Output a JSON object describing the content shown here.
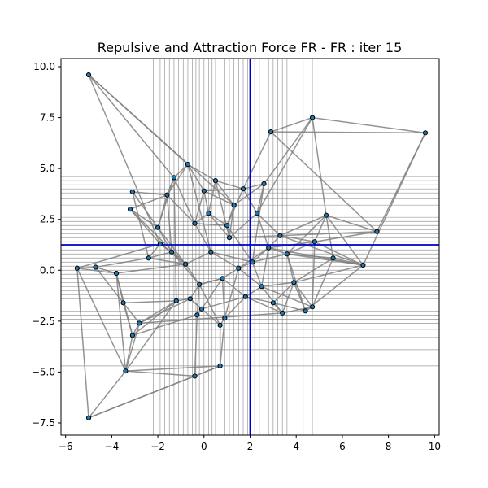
{
  "chart_data": {
    "type": "scatter",
    "title": "Repulsive and Attraction Force FR - FR : iter 15",
    "xlabel": "",
    "ylabel": "",
    "xlim": [
      -6.2,
      10.2
    ],
    "ylim": [
      -8.1,
      10.4
    ],
    "xticks": [
      -6,
      -4,
      -2,
      0,
      2,
      4,
      6,
      8,
      10
    ],
    "yticks": [
      -7.5,
      -5.0,
      -2.5,
      0.0,
      2.5,
      5.0,
      7.5,
      10.0
    ],
    "xtick_labels": [
      "−6",
      "−4",
      "−2",
      "0",
      "2",
      "4",
      "6",
      "8",
      "10"
    ],
    "ytick_labels": [
      "−7.5",
      "−5.0",
      "−2.5",
      "0.0",
      "2.5",
      "5.0",
      "7.5",
      "10.0"
    ],
    "colors": {
      "node": "#1f77b4",
      "node_edge": "#000000",
      "edge": "#808080",
      "grid": "#808080",
      "center": "#0000cc"
    },
    "center_lines": {
      "x": 2.0,
      "y": 1.25
    },
    "vertical_grid_x": [
      -2.2,
      -1.9,
      -1.7,
      -1.5,
      -1.3,
      -1.1,
      -0.9,
      -0.7,
      -0.5,
      -0.35,
      -0.2,
      0.0,
      0.2,
      0.35,
      0.5,
      0.7,
      0.9,
      1.1,
      1.3,
      1.5,
      1.7,
      1.9,
      2.2,
      2.4,
      2.6,
      2.8,
      3.0,
      3.2,
      3.4,
      3.6,
      3.9,
      4.3,
      4.7
    ],
    "horizontal_grid_y": [
      4.6,
      4.4,
      4.2,
      4.0,
      3.8,
      3.5,
      3.2,
      2.9,
      2.6,
      2.4,
      2.2,
      2.0,
      1.8,
      1.6,
      1.4,
      1.2,
      1.0,
      0.8,
      0.6,
      0.4,
      0.2,
      0.0,
      -0.2,
      -0.4,
      -0.6,
      -0.8,
      -1.0,
      -1.2,
      -1.4,
      -1.6,
      -1.8,
      -2.0,
      -2.2,
      -2.4,
      -2.6,
      -2.9,
      -3.3,
      -3.9,
      -4.7
    ],
    "nodes": [
      [
        -5.0,
        9.6
      ],
      [
        2.9,
        6.8
      ],
      [
        4.7,
        7.5
      ],
      [
        9.6,
        6.75
      ],
      [
        7.5,
        1.9
      ],
      [
        -0.7,
        5.2
      ],
      [
        -1.3,
        4.55
      ],
      [
        0.5,
        4.4
      ],
      [
        2.6,
        4.25
      ],
      [
        -3.1,
        3.85
      ],
      [
        -3.2,
        3.0
      ],
      [
        5.3,
        2.7
      ],
      [
        -5.5,
        0.1
      ],
      [
        -4.7,
        0.15
      ],
      [
        -3.8,
        -0.15
      ],
      [
        6.9,
        0.25
      ],
      [
        4.4,
        -2.0
      ],
      [
        4.7,
        -1.8
      ],
      [
        3.4,
        -2.1
      ],
      [
        -3.5,
        -1.6
      ],
      [
        -2.8,
        -2.6
      ],
      [
        -3.1,
        -3.2
      ],
      [
        -3.4,
        -4.95
      ],
      [
        -0.4,
        -5.2
      ],
      [
        0.7,
        -4.7
      ],
      [
        -5.0,
        -7.25
      ],
      [
        0.7,
        -2.7
      ],
      [
        -0.3,
        -2.2
      ],
      [
        -0.1,
        -1.9
      ],
      [
        0.9,
        -2.35
      ],
      [
        1.3,
        3.2
      ],
      [
        2.3,
        2.8
      ],
      [
        -1.6,
        3.7
      ],
      [
        0.0,
        3.9
      ],
      [
        1.7,
        4.0
      ],
      [
        -2.0,
        2.1
      ],
      [
        -1.9,
        1.3
      ],
      [
        -2.4,
        0.6
      ],
      [
        -1.2,
        -1.5
      ],
      [
        -0.6,
        -1.4
      ],
      [
        1.8,
        -1.3
      ],
      [
        2.5,
        -0.8
      ],
      [
        3.3,
        1.7
      ],
      [
        3.6,
        0.8
      ],
      [
        4.8,
        1.4
      ],
      [
        5.6,
        0.6
      ],
      [
        3.9,
        -0.6
      ],
      [
        -0.8,
        0.3
      ],
      [
        0.3,
        0.9
      ],
      [
        1.1,
        1.6
      ],
      [
        2.1,
        0.4
      ],
      [
        -0.4,
        2.3
      ],
      [
        0.8,
        -0.4
      ],
      [
        1.5,
        0.1
      ],
      [
        -1.4,
        0.9
      ],
      [
        0.2,
        2.8
      ],
      [
        2.8,
        1.1
      ],
      [
        -0.2,
        -0.7
      ],
      [
        1.0,
        2.2
      ],
      [
        3.0,
        -1.6
      ]
    ],
    "edges": [
      [
        0,
        5
      ],
      [
        0,
        30
      ],
      [
        0,
        36
      ],
      [
        1,
        2
      ],
      [
        1,
        4
      ],
      [
        2,
        3
      ],
      [
        2,
        31
      ],
      [
        2,
        8
      ],
      [
        3,
        4
      ],
      [
        3,
        1
      ],
      [
        4,
        11
      ],
      [
        4,
        42
      ],
      [
        5,
        33
      ],
      [
        5,
        48
      ],
      [
        5,
        6
      ],
      [
        6,
        35
      ],
      [
        6,
        38
      ],
      [
        7,
        34
      ],
      [
        7,
        49
      ],
      [
        8,
        31
      ],
      [
        8,
        50
      ],
      [
        9,
        32
      ],
      [
        9,
        37
      ],
      [
        10,
        35
      ],
      [
        10,
        36
      ],
      [
        10,
        47
      ],
      [
        11,
        42
      ],
      [
        11,
        44
      ],
      [
        11,
        45
      ],
      [
        12,
        13
      ],
      [
        12,
        22
      ],
      [
        12,
        36
      ],
      [
        12,
        25
      ],
      [
        13,
        37
      ],
      [
        13,
        19
      ],
      [
        14,
        47
      ],
      [
        14,
        21
      ],
      [
        14,
        22
      ],
      [
        15,
        45
      ],
      [
        15,
        44
      ],
      [
        15,
        46
      ],
      [
        15,
        43
      ],
      [
        15,
        42
      ],
      [
        15,
        16
      ],
      [
        16,
        17
      ],
      [
        16,
        46
      ],
      [
        17,
        41
      ],
      [
        18,
        40
      ],
      [
        18,
        41
      ],
      [
        18,
        20
      ],
      [
        19,
        38
      ],
      [
        19,
        20
      ],
      [
        20,
        21
      ],
      [
        20,
        39
      ],
      [
        21,
        22
      ],
      [
        21,
        27
      ],
      [
        22,
        23
      ],
      [
        22,
        38
      ],
      [
        23,
        24
      ],
      [
        24,
        26
      ],
      [
        24,
        22
      ],
      [
        25,
        24
      ],
      [
        25,
        23
      ],
      [
        26,
        29
      ],
      [
        26,
        57
      ],
      [
        27,
        28
      ],
      [
        27,
        57
      ],
      [
        28,
        52
      ],
      [
        29,
        40
      ],
      [
        29,
        53
      ],
      [
        30,
        49
      ],
      [
        30,
        58
      ],
      [
        31,
        56
      ],
      [
        32,
        51
      ],
      [
        32,
        54
      ],
      [
        33,
        55
      ],
      [
        34,
        58
      ],
      [
        34,
        31
      ],
      [
        35,
        54
      ],
      [
        36,
        47
      ],
      [
        37,
        54
      ],
      [
        38,
        39
      ],
      [
        39,
        57
      ],
      [
        40,
        52
      ],
      [
        41,
        50
      ],
      [
        42,
        56
      ],
      [
        43,
        50
      ],
      [
        44,
        43
      ],
      [
        45,
        46
      ],
      [
        46,
        41
      ],
      [
        47,
        48
      ],
      [
        48,
        53
      ],
      [
        49,
        58
      ],
      [
        50,
        53
      ],
      [
        51,
        55
      ],
      [
        52,
        57
      ],
      [
        53,
        56
      ],
      [
        54,
        47
      ],
      [
        55,
        58
      ],
      [
        56,
        43
      ],
      [
        57,
        52
      ],
      [
        58,
        51
      ],
      [
        59,
        40
      ],
      [
        59,
        46
      ],
      [
        59,
        18
      ],
      [
        6,
        51
      ],
      [
        7,
        55
      ],
      [
        9,
        35
      ],
      [
        10,
        32
      ],
      [
        14,
        19
      ],
      [
        16,
        59
      ],
      [
        17,
        46
      ],
      [
        26,
        39
      ],
      [
        28,
        40
      ],
      [
        29,
        52
      ],
      [
        33,
        51
      ],
      [
        36,
        37
      ],
      [
        44,
        56
      ],
      [
        45,
        43
      ],
      [
        49,
        31
      ],
      [
        0,
        6
      ],
      [
        1,
        34
      ],
      [
        2,
        11
      ],
      [
        3,
        15
      ],
      [
        5,
        7
      ],
      [
        8,
        34
      ],
      [
        13,
        14
      ],
      [
        20,
        38
      ],
      [
        23,
        27
      ],
      [
        24,
        29
      ],
      [
        11,
        15
      ],
      [
        12,
        14
      ],
      [
        17,
        18
      ],
      [
        19,
        21
      ],
      [
        25,
        22
      ],
      [
        30,
        33
      ],
      [
        32,
        35
      ],
      [
        37,
        47
      ],
      [
        40,
        41
      ],
      [
        42,
        44
      ],
      [
        48,
        50
      ],
      [
        49,
        42
      ],
      [
        52,
        53
      ],
      [
        54,
        57
      ],
      [
        55,
        49
      ],
      [
        56,
        41
      ],
      [
        58,
        50
      ],
      [
        21,
        38
      ],
      [
        22,
        20
      ],
      [
        28,
        39
      ],
      [
        35,
        47
      ],
      [
        36,
        54
      ],
      [
        43,
        46
      ],
      [
        45,
        17
      ],
      [
        47,
        57
      ],
      [
        48,
        51
      ],
      [
        53,
        41
      ],
      [
        50,
        56
      ],
      [
        31,
        42
      ],
      [
        33,
        34
      ],
      [
        6,
        32
      ],
      [
        7,
        30
      ],
      [
        5,
        32
      ],
      [
        8,
        30
      ],
      [
        4,
        44
      ],
      [
        11,
        43
      ],
      [
        15,
        56
      ],
      [
        16,
        43
      ],
      [
        17,
        44
      ],
      [
        18,
        46
      ]
    ]
  }
}
